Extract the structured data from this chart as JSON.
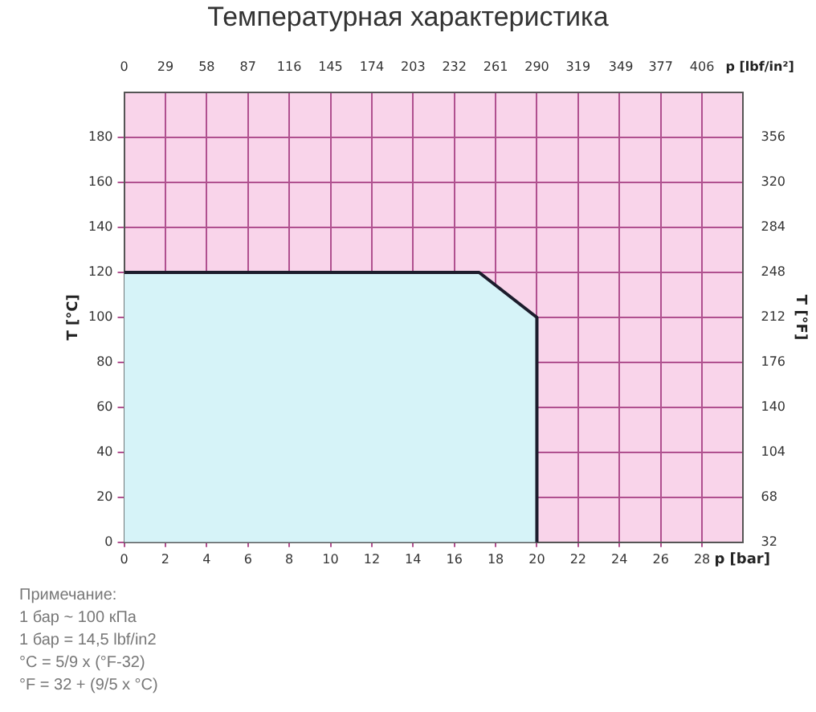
{
  "chart_data": {
    "type": "area",
    "title": "Температурная характеристика",
    "xlabel": "p [bar]",
    "x2label": "p [lbf/in²]",
    "ylabel": "T [°C]",
    "y2label": "T [°F]",
    "x": [
      0,
      17.2,
      20,
      20
    ],
    "series": [
      {
        "color": "#d6f3f8",
        "values": [
          120,
          120,
          100,
          0
        ]
      }
    ],
    "xlim": [
      0,
      30
    ],
    "xticks": [
      0,
      2,
      4,
      6,
      8,
      10,
      12,
      14,
      16,
      18,
      20,
      22,
      24,
      26,
      28
    ],
    "x2lim": [
      0,
      435
    ],
    "x2ticks": [
      0,
      29,
      58,
      87,
      116,
      145,
      174,
      203,
      232,
      261,
      290,
      319,
      349,
      377,
      406
    ],
    "ylim": [
      0,
      200
    ],
    "yticks": [
      0,
      20,
      40,
      60,
      80,
      100,
      120,
      140,
      160,
      180
    ],
    "y2lim": [
      32,
      392
    ],
    "y2ticks": [
      32,
      68,
      104,
      140,
      176,
      212,
      248,
      284,
      320,
      356
    ],
    "grid": true,
    "legend": false,
    "marker": "none",
    "line_style": "solid",
    "annotations": [
      "Примечание:",
      "1 бар ~ 100 кПа",
      "1 бар = 14,5 lbf/in2",
      "°C = 5/9 x (°F-32)",
      "°F = 32 + (9/5 x °C)"
    ]
  }
}
